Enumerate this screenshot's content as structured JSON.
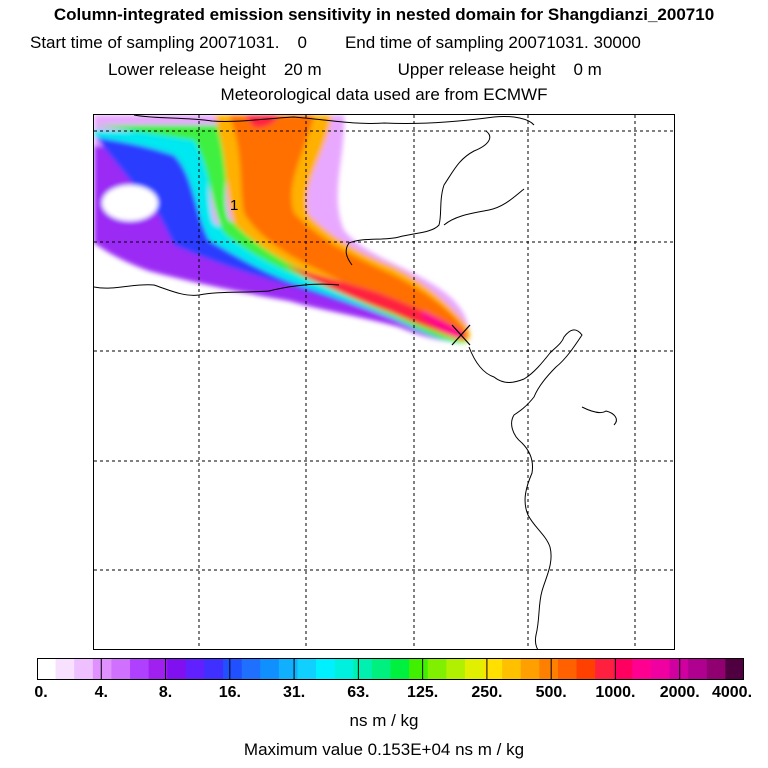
{
  "title": {
    "line1": "Column-integrated emission sensitivity in nested domain for Shangdianzi_200710",
    "start_label": "Start time of sampling 20071031.",
    "start_hour": "0",
    "end_label": "End time of sampling 20071031. 30000",
    "lower_label": "Lower release height",
    "lower_value": "20 m",
    "upper_label": "Upper release height",
    "upper_value": "0 m",
    "line4": "Meteorological data used are from ECMWF"
  },
  "map": {
    "contour_label": "1",
    "receptor_marker": "x-marker"
  },
  "colorbar": {
    "ticks": [
      "0.",
      "4.",
      "8.",
      "16.",
      "31.",
      "63.",
      "125.",
      "250.",
      "500.",
      "1000.",
      "2000.",
      "4000."
    ],
    "colors": [
      "#ffffff",
      "#f8e0ff",
      "#eec0ff",
      "#e090ff",
      "#d070ff",
      "#b040ff",
      "#a020f0",
      "#8010f0",
      "#6020ff",
      "#4030ff",
      "#2050ff",
      "#2070ff",
      "#1090ff",
      "#10b0ff",
      "#10d0ff",
      "#00f0ff",
      "#00f0e0",
      "#00f0b0",
      "#00f080",
      "#00f040",
      "#40f000",
      "#80f000",
      "#b0f000",
      "#e0f000",
      "#ffe000",
      "#ffc000",
      "#ffa000",
      "#ff8000",
      "#ff6000",
      "#ff4000",
      "#ff2040",
      "#ff0060",
      "#ff0090",
      "#f000a0",
      "#d000a0",
      "#b00090",
      "#900070",
      "#500040"
    ],
    "unit": "ns m / kg"
  },
  "max_value": "Maximum value  0.153E+04 ns m / kg"
}
